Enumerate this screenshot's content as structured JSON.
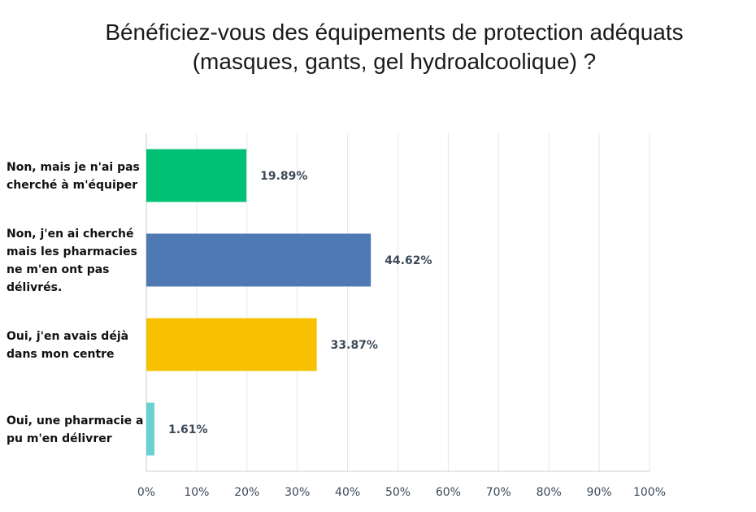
{
  "chart_data": {
    "type": "bar",
    "orientation": "horizontal",
    "title_lines": [
      "Bénéficiez-vous des équipements de protection adéquats",
      "(masques, gants, gel hydroalcoolique) ?"
    ],
    "categories": [
      [
        "Non, mais je n'ai pas",
        "cherché à m'équiper"
      ],
      [
        "Non, j'en ai cherché",
        "mais les pharmacies",
        "ne m'en ont pas",
        "délivrés."
      ],
      [
        "Oui, j'en avais déjà",
        "dans mon centre"
      ],
      [
        "Oui, une pharmacie a",
        "pu m'en délivrer"
      ]
    ],
    "values": [
      19.89,
      44.62,
      33.87,
      1.61
    ],
    "value_labels": [
      "19.89%",
      "44.62%",
      "33.87%",
      "1.61%"
    ],
    "colors": [
      "#00c073",
      "#4e79b3",
      "#f7c000",
      "#6cd0d0"
    ],
    "x_ticks": [
      "0%",
      "10%",
      "20%",
      "30%",
      "40%",
      "50%",
      "60%",
      "70%",
      "80%",
      "90%",
      "100%"
    ],
    "xlim": [
      0,
      100
    ],
    "grid": true,
    "legend": "none"
  }
}
